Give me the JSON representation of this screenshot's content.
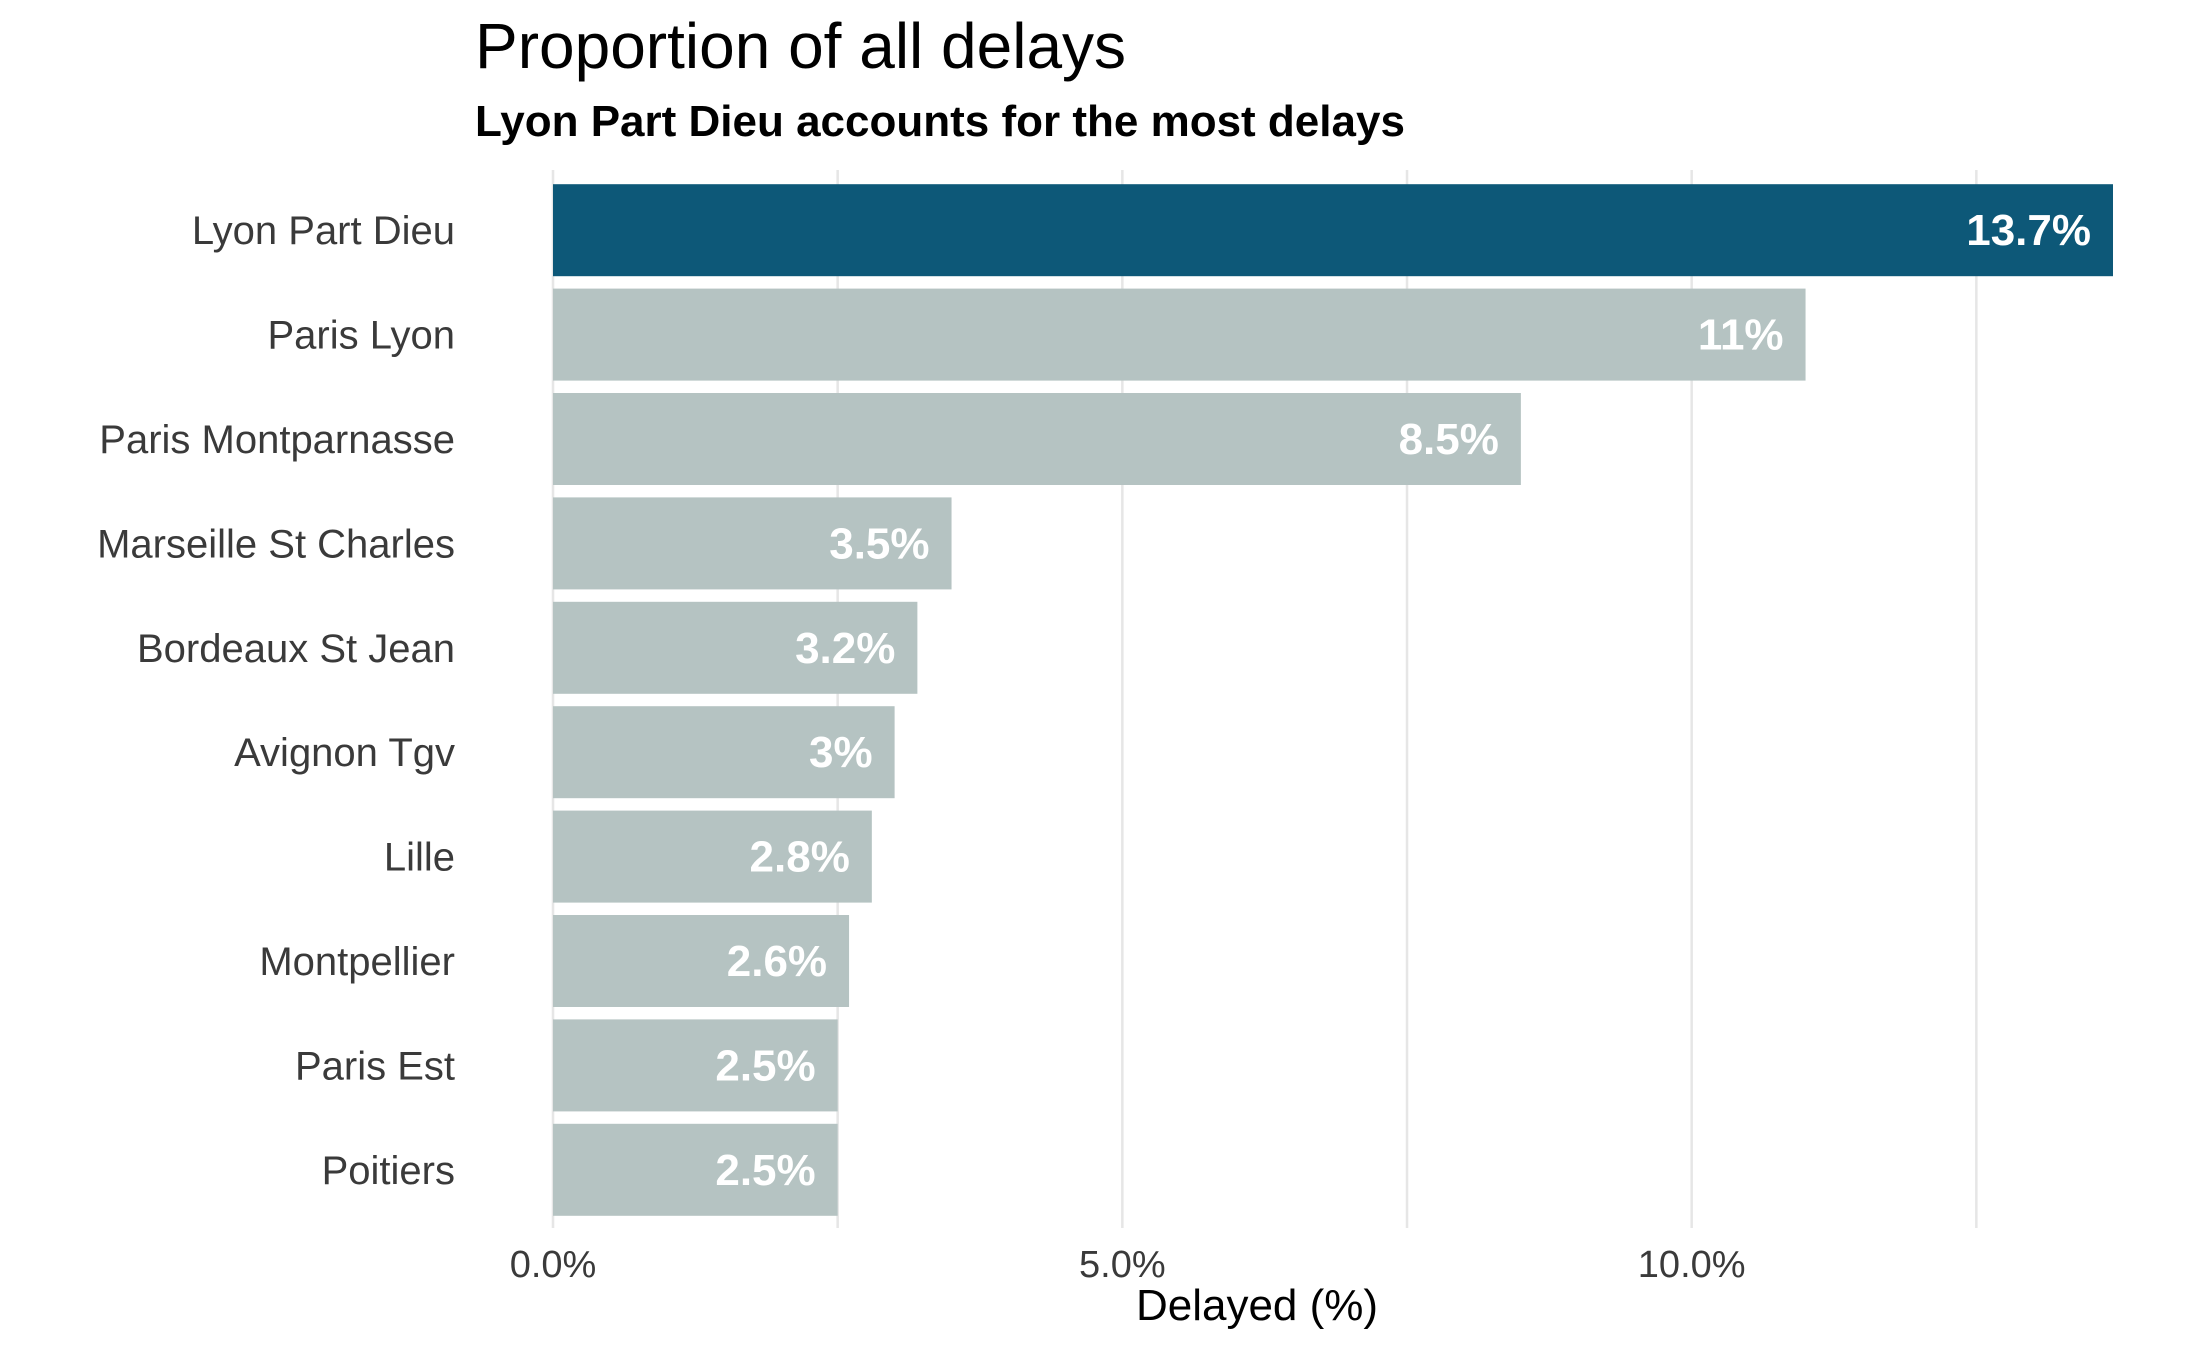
{
  "chart_data": {
    "type": "bar",
    "orientation": "horizontal",
    "title": "Proportion of all delays",
    "subtitle": "Lyon Part Dieu accounts for the most delays",
    "xlabel": "Delayed (%)",
    "ylabel": "",
    "categories": [
      "Lyon Part Dieu",
      "Paris Lyon",
      "Paris Montparnasse",
      "Marseille St Charles",
      "Bordeaux St Jean",
      "Avignon Tgv",
      "Lille",
      "Montpellier",
      "Paris Est",
      "Poitiers"
    ],
    "values": [
      13.7,
      11.0,
      8.5,
      3.5,
      3.2,
      3.0,
      2.8,
      2.6,
      2.5,
      2.5
    ],
    "data_labels": [
      "13.7%",
      "11%",
      "8.5%",
      "3.5%",
      "3.2%",
      "3%",
      "2.8%",
      "2.6%",
      "2.5%",
      "2.5%"
    ],
    "xlim": [
      0,
      13.7
    ],
    "x_ticks": [
      0,
      5,
      10
    ],
    "x_tick_labels": [
      "0.0%",
      "5.0%",
      "10.0%"
    ],
    "x_minor_ticks": [
      2.5,
      7.5,
      12.5
    ],
    "grid": true,
    "legend": "none",
    "highlight_index": 0,
    "colors": {
      "highlight": "#0d5878",
      "default": "#b5c3c2",
      "grid": "#e6e6e6",
      "data_label": "#ffffff"
    }
  }
}
